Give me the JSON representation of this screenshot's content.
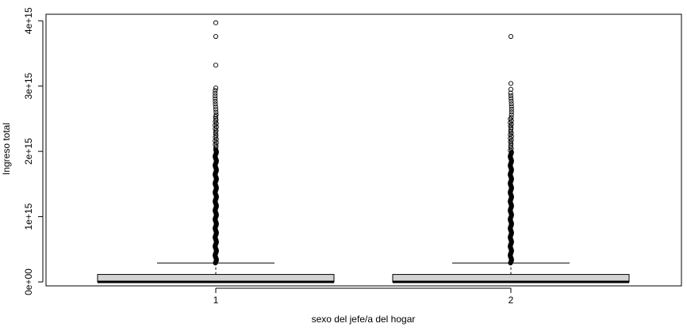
{
  "chart_data": {
    "type": "boxplot",
    "title": "",
    "xlabel": "sexo del jefe/a del hogar",
    "ylabel": "Ingreso total",
    "categories": [
      "1",
      "2"
    ],
    "ylim": [
      -60000000000000.0,
      4100000000000000.0
    ],
    "yticks": [
      0,
      1000000000000000.0,
      2000000000000000.0,
      3000000000000000.0,
      4000000000000000.0
    ],
    "ytick_labels": [
      "0e+00",
      "1e+15",
      "2e+15",
      "3e+15",
      "4e+15"
    ],
    "grid": false,
    "legend": "none",
    "box_fill": "#d3d3d3",
    "series": [
      {
        "category": "1",
        "whisker_low": 0,
        "q1": 0,
        "median": 0,
        "q3": 115000000000000.0,
        "whisker_high": 290000000000000.0,
        "outlier_band": [
          290000000000000.0,
          2950000000000000.0
        ],
        "outliers_sparse": [
          2970000000000000.0,
          3320000000000000.0,
          3760000000000000.0,
          3970000000000000.0
        ]
      },
      {
        "category": "2",
        "whisker_low": 0,
        "q1": 0,
        "median": 0,
        "q3": 115000000000000.0,
        "whisker_high": 290000000000000.0,
        "outlier_band": [
          290000000000000.0,
          2900000000000000.0
        ],
        "outliers_sparse": [
          2950000000000000.0,
          3040000000000000.0,
          3760000000000000.0
        ]
      }
    ]
  }
}
